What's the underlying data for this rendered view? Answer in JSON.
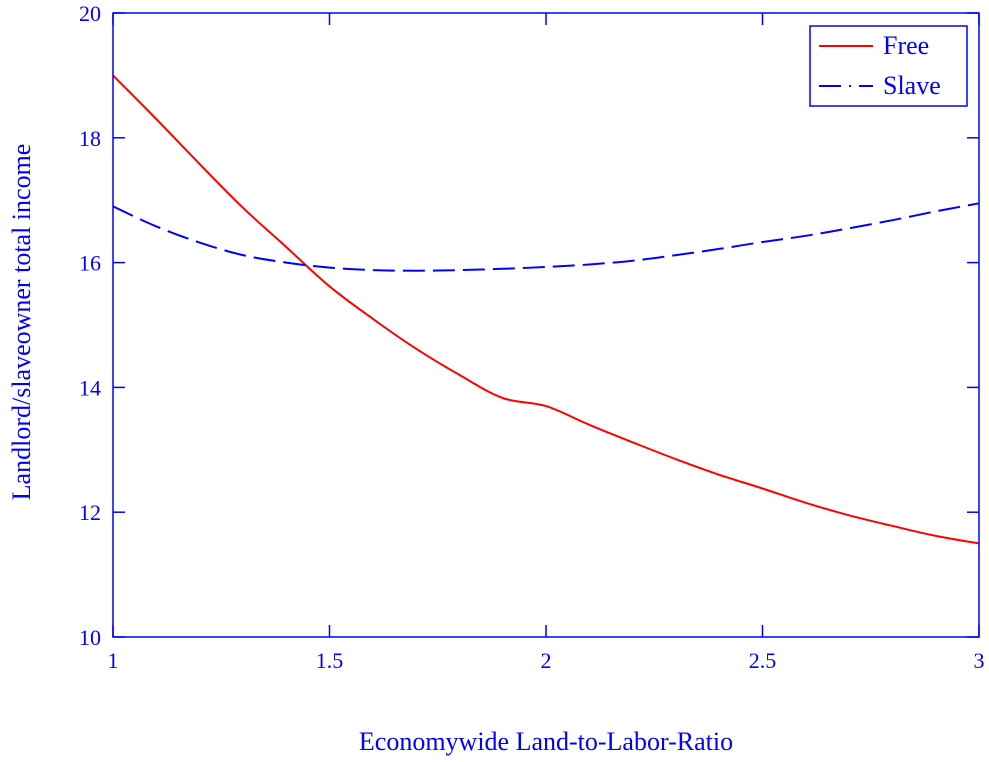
{
  "chart_data": {
    "type": "line",
    "xlabel": "Economywide Land-to-Labor-Ratio",
    "ylabel": "Landlord/slaveowner total income",
    "xlim": [
      1,
      3
    ],
    "ylim": [
      10,
      20
    ],
    "xticks": [
      1,
      1.5,
      2,
      2.5,
      3
    ],
    "xtick_labels": [
      "1",
      "1.5",
      "2",
      "2.5",
      "3"
    ],
    "yticks": [
      10,
      12,
      14,
      16,
      18,
      20
    ],
    "ytick_labels": [
      "10",
      "12",
      "14",
      "16",
      "18",
      "20"
    ],
    "grid": false,
    "legend_position": "top-right",
    "colors": {
      "axis": "#0000ff",
      "free": "#ff0000",
      "slave": "#0000ff"
    },
    "series": [
      {
        "name": "Free",
        "style": "solid",
        "x": [
          1.0,
          1.1,
          1.2,
          1.3,
          1.4,
          1.5,
          1.6,
          1.7,
          1.8,
          1.9,
          2.0,
          2.1,
          2.2,
          2.3,
          2.4,
          2.5,
          2.6,
          2.7,
          2.8,
          2.9,
          3.0
        ],
        "y": [
          19.0,
          18.3,
          17.58,
          16.88,
          16.25,
          15.62,
          15.1,
          14.62,
          14.2,
          13.83,
          13.7,
          13.4,
          13.12,
          12.85,
          12.6,
          12.38,
          12.15,
          11.95,
          11.78,
          11.62,
          11.5
        ]
      },
      {
        "name": "Slave",
        "style": "dashed",
        "x": [
          1.0,
          1.1,
          1.2,
          1.3,
          1.4,
          1.5,
          1.6,
          1.7,
          1.8,
          1.9,
          2.0,
          2.1,
          2.2,
          2.3,
          2.4,
          2.5,
          2.6,
          2.7,
          2.8,
          2.9,
          3.0
        ],
        "y": [
          16.9,
          16.58,
          16.32,
          16.12,
          16.0,
          15.92,
          15.88,
          15.87,
          15.88,
          15.9,
          15.93,
          15.97,
          16.03,
          16.12,
          16.22,
          16.33,
          16.43,
          16.55,
          16.68,
          16.82,
          16.95
        ]
      }
    ]
  }
}
